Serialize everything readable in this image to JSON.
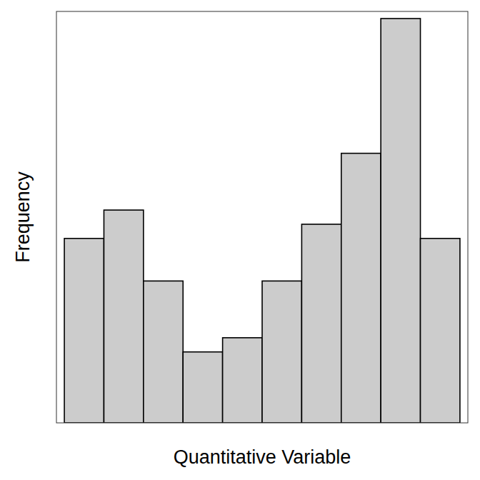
{
  "chart_data": {
    "type": "histogram",
    "x_label": "Quantitative Variable",
    "y_label": "Frequency",
    "bins": [
      0,
      1,
      2,
      3,
      4,
      5,
      6,
      7,
      8,
      9,
      10
    ],
    "values": [
      26,
      30,
      20,
      10,
      12,
      20,
      28,
      38,
      57,
      26
    ],
    "color": "#cccccc",
    "xlim": [
      -0.2,
      10.2
    ],
    "ylim": [
      0,
      58
    ],
    "tick_labels": false,
    "grid": false
  }
}
